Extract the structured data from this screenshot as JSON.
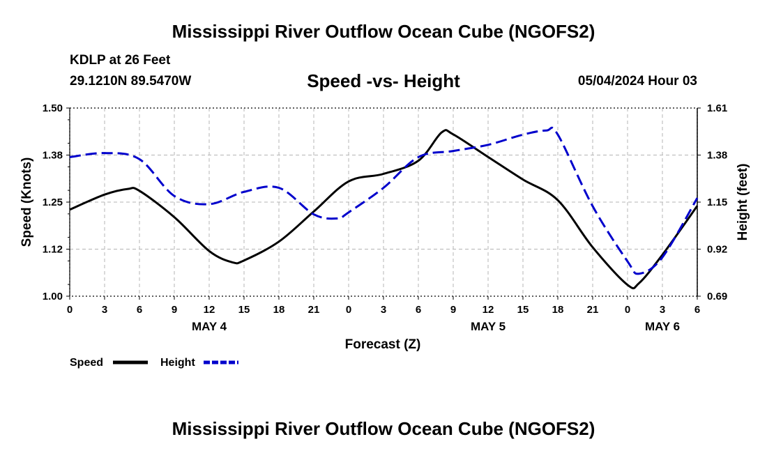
{
  "header": {
    "title": "Mississippi River Outflow Ocean Cube (NGOFS2)",
    "station": "KDLP at 26 Feet",
    "coords": "29.1210N  89.5470W",
    "subtitle": "Speed -vs- Height",
    "datetime": "05/04/2024 Hour 03",
    "footer_title": "Mississippi River Outflow Ocean Cube (NGOFS2)"
  },
  "colors": {
    "speed": "#000000",
    "height": "#0000cc",
    "grid": "#b4b4b4"
  },
  "chart_data": {
    "type": "line",
    "title": "Speed -vs- Height",
    "xlabel": "Forecast (Z)",
    "ylabel": "Speed (Knots)",
    "y2label": "Height (feet)",
    "xlim": [
      0,
      54
    ],
    "ylim": [
      1.0,
      1.5
    ],
    "y2lim": [
      0.69,
      1.61
    ],
    "x_ticks": [
      0,
      3,
      6,
      9,
      12,
      15,
      18,
      21,
      24,
      27,
      30,
      33,
      36,
      39,
      42,
      45,
      48,
      51,
      54
    ],
    "x_tick_labels": [
      "0",
      "3",
      "6",
      "9",
      "12",
      "15",
      "18",
      "21",
      "0",
      "3",
      "6",
      "9",
      "12",
      "15",
      "18",
      "21",
      "0",
      "3",
      "6"
    ],
    "y_ticks": [
      "1.00",
      "1.12",
      "1.25",
      "1.38",
      "1.50"
    ],
    "y2_ticks": [
      "0.69",
      "0.92",
      "1.15",
      "1.38",
      "1.61"
    ],
    "day_labels": [
      {
        "x": 12,
        "label": "MAY 4"
      },
      {
        "x": 36,
        "label": "MAY 5"
      },
      {
        "x": 51,
        "label": "MAY 6"
      }
    ],
    "grid": true,
    "legend_position": "bottom-left",
    "series": [
      {
        "name": "Speed",
        "axis": "left",
        "style": "solid",
        "x": [
          0,
          3,
          5,
          6,
          9,
          12,
          14,
          15,
          18,
          21,
          24,
          27,
          30,
          32,
          33,
          36,
          39,
          42,
          45,
          48,
          49,
          51,
          54
        ],
        "values": [
          1.23,
          1.27,
          1.285,
          1.28,
          1.21,
          1.12,
          1.09,
          1.095,
          1.145,
          1.225,
          1.305,
          1.325,
          1.36,
          1.435,
          1.43,
          1.37,
          1.31,
          1.255,
          1.13,
          1.03,
          1.035,
          1.11,
          1.24
        ]
      },
      {
        "name": "Height",
        "axis": "right",
        "style": "dashed",
        "x": [
          0,
          3,
          6,
          9,
          12,
          15,
          18,
          21,
          23,
          24,
          27,
          30,
          33,
          36,
          39,
          41,
          42,
          45,
          48,
          49,
          51,
          54
        ],
        "values": [
          1.37,
          1.39,
          1.36,
          1.18,
          1.14,
          1.2,
          1.22,
          1.09,
          1.07,
          1.1,
          1.22,
          1.37,
          1.4,
          1.43,
          1.48,
          1.5,
          1.48,
          1.13,
          0.86,
          0.8,
          0.88,
          1.17
        ]
      }
    ]
  }
}
